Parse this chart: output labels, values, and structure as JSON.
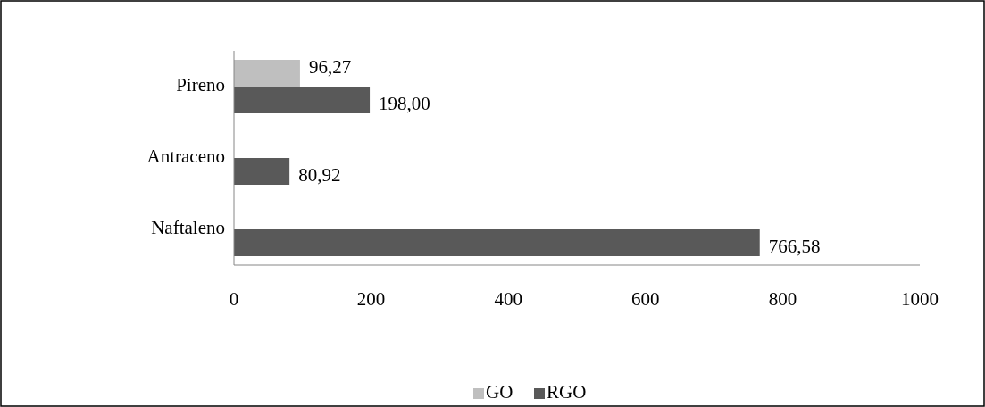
{
  "chart_data": {
    "type": "bar",
    "orientation": "horizontal",
    "categories": [
      "Pireno",
      "Antraceno",
      "Naftaleno"
    ],
    "series": [
      {
        "name": "GO",
        "color": "#bfbfbf",
        "values": [
          96.27,
          null,
          null
        ],
        "value_labels": [
          "96,27",
          null,
          null
        ]
      },
      {
        "name": "RGO",
        "color": "#595959",
        "values": [
          198.0,
          80.92,
          766.58
        ],
        "value_labels": [
          "198,00",
          "80,92",
          "766,58"
        ]
      }
    ],
    "xlim": [
      0,
      1000
    ],
    "xticks": [
      0,
      200,
      400,
      600,
      800,
      1000
    ],
    "grid": false,
    "legend": "bottom"
  }
}
